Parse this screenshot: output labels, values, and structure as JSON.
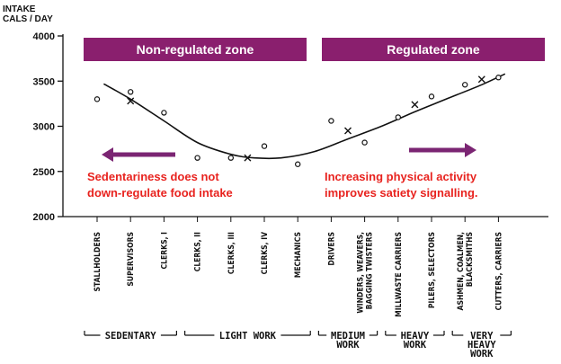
{
  "chart_data": {
    "type": "scatter",
    "ylabel_lines": [
      "INTAKE",
      "CALS / DAY"
    ],
    "ylim": [
      2000,
      4000
    ],
    "yticks": [
      2000,
      2500,
      3000,
      3500,
      4000
    ],
    "categories": [
      "STALLHOLDERS",
      "SUPERVISORS",
      "CLERKS, I",
      "CLERKS, II",
      "CLERKS, III",
      "CLERKS, IV",
      "MECHANICS",
      "DRIVERS",
      "WINDERS, WEAVERS, BAGGING TWISTERS",
      "MILLWASTE CARRIERS",
      "PILERS, SELECTORS",
      "ASHMEN, COALMEN, BLACKSMITHS",
      "CUTTERS, CARRIERS"
    ],
    "observed_points": [
      {
        "category": "STALLHOLDERS",
        "value": 3300
      },
      {
        "category": "SUPERVISORS",
        "value": 3380
      },
      {
        "category": "CLERKS, I",
        "value": 3150
      },
      {
        "category": "CLERKS, II",
        "value": 2650
      },
      {
        "category": "CLERKS, III",
        "value": 2650
      },
      {
        "category": "CLERKS, IV",
        "value": 2780
      },
      {
        "category": "MECHANICS",
        "value": 2580
      },
      {
        "category": "DRIVERS",
        "value": 3060
      },
      {
        "category": "WINDERS, WEAVERS, BAGGING TWISTERS",
        "value": 2820
      },
      {
        "category": "MILLWASTE CARRIERS",
        "value": 3100
      },
      {
        "category": "PILERS, SELECTORS",
        "value": 3330
      },
      {
        "category": "ASHMEN, COALMEN, BLACKSMITHS",
        "value": 3460
      },
      {
        "category": "CUTTERS, CARRIERS",
        "value": 3540
      }
    ],
    "group_means": [
      {
        "group": "SEDENTARY",
        "value": 3280
      },
      {
        "group": "LIGHT WORK",
        "value": 2650
      },
      {
        "group": "MEDIUM WORK",
        "value": 2950
      },
      {
        "group": "HEAVY WORK",
        "value": 3240
      },
      {
        "group": "VERY HEAVY WORK",
        "value": 3520
      }
    ],
    "trend_curve": [
      [
        0.2,
        3470
      ],
      [
        1.0,
        3300
      ],
      [
        2.0,
        3060
      ],
      [
        3.0,
        2820
      ],
      [
        4.0,
        2690
      ],
      [
        4.7,
        2650
      ],
      [
        5.5,
        2650
      ],
      [
        6.5,
        2720
      ],
      [
        7.5,
        2860
      ],
      [
        8.5,
        3000
      ],
      [
        9.5,
        3160
      ],
      [
        10.5,
        3310
      ],
      [
        11.5,
        3460
      ],
      [
        12.2,
        3580
      ]
    ],
    "groups": [
      {
        "label_lines": [
          "SEDENTARY"
        ],
        "start": 0,
        "end": 2
      },
      {
        "label_lines": [
          "LIGHT WORK"
        ],
        "start": 3,
        "end": 6
      },
      {
        "label_lines": [
          "MEDIUM",
          "WORK"
        ],
        "start": 7,
        "end": 8
      },
      {
        "label_lines": [
          "HEAVY",
          "WORK"
        ],
        "start": 9,
        "end": 10
      },
      {
        "label_lines": [
          "VERY",
          "HEAVY",
          "WORK"
        ],
        "start": 11,
        "end": 12
      }
    ],
    "zones": [
      {
        "label": "Non-regulated zone"
      },
      {
        "label": "Regulated zone"
      }
    ],
    "annotations": [
      {
        "lines": [
          "Sedentariness does not",
          "down-regulate food intake"
        ],
        "arrow": "left"
      },
      {
        "lines": [
          "Increasing physical activity",
          "improves satiety signalling."
        ],
        "arrow": "right"
      }
    ],
    "colors": {
      "zone_fill": "#8a1f6e",
      "arrow": "#7b2573",
      "annotation_text": "#e8231f",
      "ink": "#111111"
    }
  }
}
